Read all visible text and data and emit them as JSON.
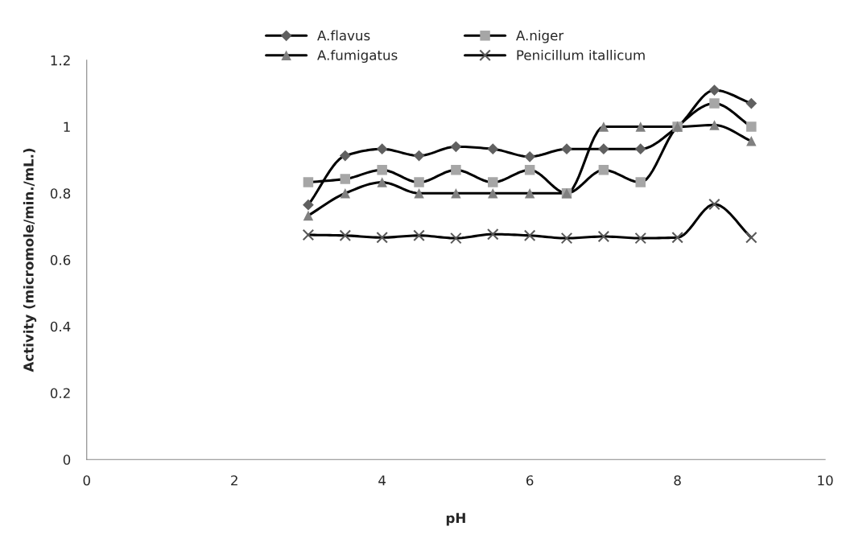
{
  "chart_data": {
    "type": "line",
    "xlabel": "pH",
    "ylabel": "Activity (micromole/min./mL.)",
    "x": [
      3,
      3.5,
      4,
      4.5,
      5,
      5.5,
      6,
      6.5,
      7,
      7.5,
      8,
      8.5,
      9
    ],
    "series": [
      {
        "name": "A.flavus",
        "color": "#606060",
        "marker": "diamond",
        "values": [
          0.765,
          0.913,
          0.933,
          0.913,
          0.94,
          0.933,
          0.91,
          0.933,
          0.933,
          0.933,
          1.0,
          1.11,
          1.07
        ]
      },
      {
        "name": "A.niger",
        "color": "#a6a6a6",
        "marker": "square",
        "values": [
          0.833,
          0.843,
          0.87,
          0.833,
          0.87,
          0.833,
          0.87,
          0.8,
          0.87,
          0.833,
          1.0,
          1.07,
          1.0
        ]
      },
      {
        "name": "A.fumigatus",
        "color": "#808080",
        "marker": "triangle",
        "values": [
          0.733,
          0.8,
          0.833,
          0.8,
          0.8,
          0.8,
          0.8,
          0.8,
          1.0,
          1.0,
          1.0,
          1.005,
          0.957
        ]
      },
      {
        "name": "Penicillum itallicum",
        "color": "#595959",
        "marker": "cross",
        "values": [
          0.675,
          0.673,
          0.667,
          0.673,
          0.665,
          0.677,
          0.673,
          0.665,
          0.67,
          0.665,
          0.667,
          0.767,
          0.667
        ]
      }
    ],
    "xlim": [
      0,
      10
    ],
    "xticks": [
      0,
      2,
      4,
      6,
      8,
      10
    ],
    "ylim": [
      0,
      1.2
    ],
    "yticks": [
      0,
      0.2,
      0.4,
      0.6,
      0.8,
      1,
      1.2
    ],
    "grid": false,
    "legend": "top"
  }
}
